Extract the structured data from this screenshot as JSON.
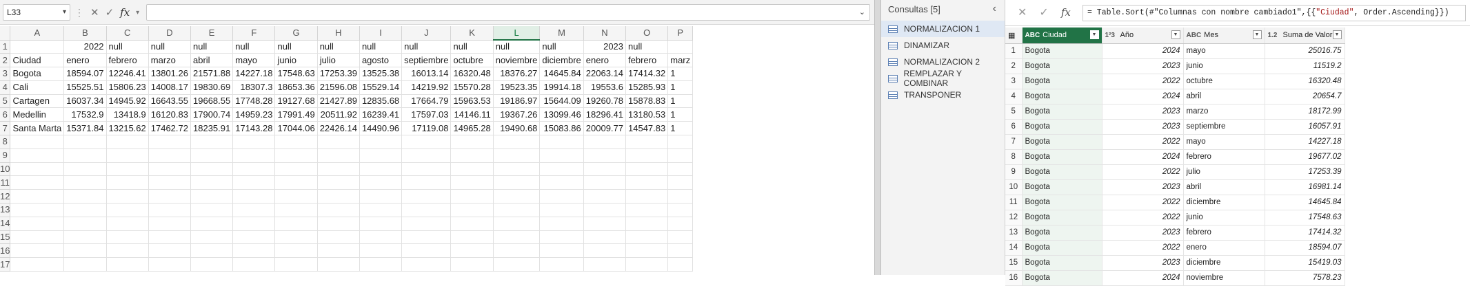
{
  "excel": {
    "name_box": "L33",
    "formula_value": "",
    "fx_label": "fx",
    "column_headers": [
      "A",
      "B",
      "C",
      "D",
      "E",
      "F",
      "G",
      "H",
      "I",
      "J",
      "K",
      "L",
      "M",
      "N",
      "O",
      "P"
    ],
    "active_column": "L",
    "row_numbers": [
      "1",
      "2",
      "3",
      "4",
      "5",
      "6",
      "7",
      "8",
      "9",
      "10",
      "11",
      "12",
      "13",
      "14",
      "15",
      "16",
      "17"
    ],
    "rows": [
      [
        "",
        "2022",
        "null",
        "null",
        "null",
        "null",
        "null",
        "null",
        "null",
        "null",
        "null",
        "null",
        "null",
        "2023",
        "null",
        ""
      ],
      [
        "Ciudad",
        "enero",
        "febrero",
        "marzo",
        "abril",
        "mayo",
        "junio",
        "julio",
        "agosto",
        "septiembre",
        "octubre",
        "noviembre",
        "diciembre",
        "enero",
        "febrero",
        "marz"
      ],
      [
        "Bogota",
        "18594.07",
        "12246.41",
        "13801.26",
        "21571.88",
        "14227.18",
        "17548.63",
        "17253.39",
        "13525.38",
        "16013.14",
        "16320.48",
        "18376.27",
        "14645.84",
        "22063.14",
        "17414.32",
        "1"
      ],
      [
        "Cali",
        "15525.51",
        "15806.23",
        "14008.17",
        "19830.69",
        "18307.3",
        "18653.36",
        "21596.08",
        "15529.14",
        "14219.92",
        "15570.28",
        "19523.35",
        "19914.18",
        "19553.6",
        "15285.93",
        "1"
      ],
      [
        "Cartagen",
        "16037.34",
        "14945.92",
        "16643.55",
        "19668.55",
        "17748.28",
        "19127.68",
        "21427.89",
        "12835.68",
        "17664.79",
        "15963.53",
        "19186.97",
        "15644.09",
        "19260.78",
        "15878.83",
        "1"
      ],
      [
        "Medellin",
        "17532.9",
        "13418.9",
        "16120.83",
        "17900.74",
        "14959.23",
        "17991.49",
        "20511.92",
        "16239.41",
        "17597.03",
        "14146.11",
        "19367.26",
        "13099.46",
        "18296.41",
        "13180.53",
        "1"
      ],
      [
        "Santa Marta",
        "15371.84",
        "13215.62",
        "17462.72",
        "18235.91",
        "17143.28",
        "17044.06",
        "22426.14",
        "14490.96",
        "17119.08",
        "14965.28",
        "19490.68",
        "15083.86",
        "20009.77",
        "14547.83",
        "1"
      ],
      [
        "",
        "",
        "",
        "",
        "",
        "",
        "",
        "",
        "",
        "",
        "",
        "",
        "",
        "",
        "",
        ""
      ],
      [
        "",
        "",
        "",
        "",
        "",
        "",
        "",
        "",
        "",
        "",
        "",
        "",
        "",
        "",
        "",
        ""
      ],
      [
        "",
        "",
        "",
        "",
        "",
        "",
        "",
        "",
        "",
        "",
        "",
        "",
        "",
        "",
        "",
        ""
      ],
      [
        "",
        "",
        "",
        "",
        "",
        "",
        "",
        "",
        "",
        "",
        "",
        "",
        "",
        "",
        "",
        ""
      ],
      [
        "",
        "",
        "",
        "",
        "",
        "",
        "",
        "",
        "",
        "",
        "",
        "",
        "",
        "",
        "",
        ""
      ],
      [
        "",
        "",
        "",
        "",
        "",
        "",
        "",
        "",
        "",
        "",
        "",
        "",
        "",
        "",
        "",
        ""
      ],
      [
        "",
        "",
        "",
        "",
        "",
        "",
        "",
        "",
        "",
        "",
        "",
        "",
        "",
        "",
        "",
        ""
      ],
      [
        "",
        "",
        "",
        "",
        "",
        "",
        "",
        "",
        "",
        "",
        "",
        "",
        "",
        "",
        "",
        ""
      ],
      [
        "",
        "",
        "",
        "",
        "",
        "",
        "",
        "",
        "",
        "",
        "",
        "",
        "",
        "",
        "",
        ""
      ],
      [
        "",
        "",
        "",
        "",
        "",
        "",
        "",
        "",
        "",
        "",
        "",
        "",
        "",
        "",
        "",
        ""
      ]
    ],
    "numeric_columns": [
      1,
      2,
      3,
      4,
      5,
      6,
      7,
      8,
      9,
      10,
      11,
      12,
      13,
      14
    ]
  },
  "power_query": {
    "queries_title": "Consultas [5]",
    "queries": [
      {
        "label": "NORMALIZACION 1",
        "selected": true
      },
      {
        "label": "DINAMIZAR",
        "selected": false
      },
      {
        "label": "NORMALIZACION 2",
        "selected": false
      },
      {
        "label": "REMPLAZAR Y COMBINAR",
        "selected": false
      },
      {
        "label": "TRANSPONER",
        "selected": false
      }
    ],
    "formula": {
      "prefix": "= Table.Sort(#\"Columnas con nombre cambiado1\",{{",
      "string": "\"Ciudad\"",
      "suffix": ", Order.Ascending}})"
    },
    "columns": [
      {
        "type_icon": "ABC",
        "label": "Ciudad",
        "sorted": true
      },
      {
        "type_icon": "1²3",
        "label": "Año",
        "sorted": false
      },
      {
        "type_icon": "ABC",
        "label": "Mes",
        "sorted": false
      },
      {
        "type_icon": "1.2",
        "label": "Suma de Valor",
        "sorted": false
      }
    ],
    "rows": [
      [
        "1",
        "Bogota",
        "2024",
        "mayo",
        "25016.75"
      ],
      [
        "2",
        "Bogota",
        "2023",
        "junio",
        "11519.2"
      ],
      [
        "3",
        "Bogota",
        "2022",
        "octubre",
        "16320.48"
      ],
      [
        "4",
        "Bogota",
        "2024",
        "abril",
        "20654.7"
      ],
      [
        "5",
        "Bogota",
        "2023",
        "marzo",
        "18172.99"
      ],
      [
        "6",
        "Bogota",
        "2023",
        "septiembre",
        "16057.91"
      ],
      [
        "7",
        "Bogota",
        "2022",
        "mayo",
        "14227.18"
      ],
      [
        "8",
        "Bogota",
        "2024",
        "febrero",
        "19677.02"
      ],
      [
        "9",
        "Bogota",
        "2022",
        "julio",
        "17253.39"
      ],
      [
        "10",
        "Bogota",
        "2023",
        "abril",
        "16981.14"
      ],
      [
        "11",
        "Bogota",
        "2022",
        "diciembre",
        "14645.84"
      ],
      [
        "12",
        "Bogota",
        "2022",
        "junio",
        "17548.63"
      ],
      [
        "13",
        "Bogota",
        "2023",
        "febrero",
        "17414.32"
      ],
      [
        "14",
        "Bogota",
        "2022",
        "enero",
        "18594.07"
      ],
      [
        "15",
        "Bogota",
        "2023",
        "diciembre",
        "15419.03"
      ],
      [
        "16",
        "Bogota",
        "2024",
        "noviembre",
        "7578.23"
      ]
    ]
  }
}
